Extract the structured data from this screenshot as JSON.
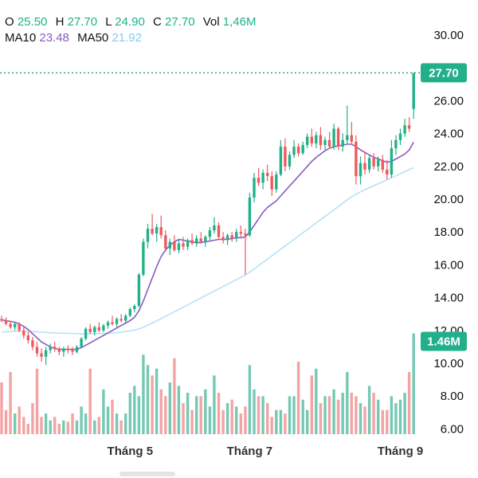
{
  "ohlc_legend": {
    "open_label": "O",
    "open": "25.50",
    "high_label": "H",
    "high": "27.70",
    "low_label": "L",
    "low": "24.90",
    "close_label": "C",
    "close": "27.70",
    "volume_label": "Vol",
    "volume": "1,46M"
  },
  "ma_legend": {
    "ma10_label": "MA10",
    "ma10": "23.48",
    "ma50_label": "MA50",
    "ma50": "21.92"
  },
  "colors": {
    "up": "#21b08a",
    "down": "#f0595c",
    "volume_up": "#75c9b4",
    "volume_down": "#f4a3a4",
    "ma10": "#8a5cc0",
    "ma50": "#b7e2f8",
    "grid_text": "#111111",
    "last_price_line": "#1f9a86"
  },
  "chart_data": {
    "type": "candlestick",
    "price_axis": {
      "ticks": [
        "30.00",
        "26.00",
        "24.00",
        "22.00",
        "20.00",
        "18.00",
        "16.00",
        "14.00",
        "12.00",
        "10.00",
        "8.00",
        "6.00"
      ],
      "range": [
        6,
        30
      ]
    },
    "time_axis": {
      "ticks": [
        "Tháng 5",
        "Tháng 7",
        "Tháng 9"
      ]
    },
    "last_price_label": "27.70",
    "last_volume_label": "1.46M",
    "volume_scale_max": 1.5,
    "candles": [
      [
        12.7,
        12.9,
        12.5,
        12.6
      ],
      [
        12.6,
        12.8,
        12.3,
        12.4
      ],
      [
        12.4,
        12.6,
        12.1,
        12.2
      ],
      [
        12.2,
        12.5,
        12.0,
        12.4
      ],
      [
        12.4,
        12.5,
        11.9,
        12.0
      ],
      [
        12.0,
        12.2,
        11.5,
        11.7
      ],
      [
        11.7,
        11.9,
        11.2,
        11.4
      ],
      [
        11.4,
        11.6,
        10.8,
        11.0
      ],
      [
        11.0,
        11.3,
        10.4,
        10.6
      ],
      [
        10.6,
        10.9,
        10.1,
        10.4
      ],
      [
        10.4,
        11.0,
        9.9,
        10.8
      ],
      [
        10.8,
        11.2,
        10.6,
        11.0
      ],
      [
        11.0,
        11.3,
        10.7,
        10.9
      ],
      [
        10.9,
        11.0,
        10.5,
        10.7
      ],
      [
        10.7,
        11.0,
        10.4,
        10.9
      ],
      [
        10.9,
        11.1,
        10.6,
        10.8
      ],
      [
        10.8,
        11.0,
        10.5,
        10.7
      ],
      [
        10.7,
        11.1,
        10.6,
        11.0
      ],
      [
        11.0,
        11.6,
        10.9,
        11.5
      ],
      [
        11.5,
        12.2,
        11.4,
        12.1
      ],
      [
        12.1,
        12.4,
        11.8,
        11.9
      ],
      [
        11.9,
        12.3,
        11.7,
        12.2
      ],
      [
        12.2,
        12.5,
        11.9,
        12.0
      ],
      [
        12.0,
        12.4,
        11.9,
        12.3
      ],
      [
        12.3,
        12.6,
        12.1,
        12.5
      ],
      [
        12.5,
        12.9,
        12.3,
        12.4
      ],
      [
        12.4,
        12.8,
        12.2,
        12.7
      ],
      [
        12.7,
        13.0,
        12.5,
        12.6
      ],
      [
        12.6,
        13.0,
        12.4,
        12.9
      ],
      [
        12.9,
        13.4,
        12.8,
        13.3
      ],
      [
        13.3,
        13.6,
        13.1,
        13.5
      ],
      [
        13.5,
        15.5,
        13.4,
        15.4
      ],
      [
        15.4,
        17.6,
        15.3,
        17.4
      ],
      [
        17.4,
        18.5,
        17.0,
        18.2
      ],
      [
        18.2,
        19.1,
        17.8,
        17.9
      ],
      [
        17.9,
        18.5,
        17.4,
        18.3
      ],
      [
        18.3,
        19.0,
        17.6,
        17.8
      ],
      [
        17.8,
        18.1,
        16.8,
        17.0
      ],
      [
        17.0,
        17.6,
        16.6,
        17.4
      ],
      [
        17.4,
        17.8,
        16.8,
        16.9
      ],
      [
        16.9,
        17.5,
        16.7,
        17.3
      ],
      [
        17.3,
        17.7,
        16.9,
        17.1
      ],
      [
        17.1,
        17.6,
        16.9,
        17.5
      ],
      [
        17.5,
        17.9,
        17.2,
        17.3
      ],
      [
        17.3,
        17.8,
        17.1,
        17.6
      ],
      [
        17.6,
        18.0,
        17.3,
        17.4
      ],
      [
        17.4,
        17.8,
        17.1,
        17.7
      ],
      [
        17.7,
        18.3,
        17.5,
        18.1
      ],
      [
        18.1,
        18.9,
        17.9,
        18.4
      ],
      [
        18.4,
        18.6,
        17.6,
        17.7
      ],
      [
        17.7,
        18.0,
        17.3,
        17.5
      ],
      [
        17.5,
        17.9,
        17.2,
        17.8
      ],
      [
        17.8,
        18.0,
        17.4,
        17.6
      ],
      [
        17.6,
        18.2,
        17.4,
        18.0
      ],
      [
        18.0,
        18.4,
        17.7,
        17.9
      ],
      [
        17.9,
        18.2,
        15.4,
        17.8
      ],
      [
        17.8,
        20.4,
        17.7,
        20.1
      ],
      [
        20.1,
        21.6,
        19.8,
        21.3
      ],
      [
        21.3,
        21.9,
        20.8,
        21.0
      ],
      [
        21.0,
        21.8,
        20.6,
        21.6
      ],
      [
        21.6,
        22.1,
        21.1,
        21.4
      ],
      [
        21.4,
        21.7,
        20.2,
        20.6
      ],
      [
        20.6,
        21.7,
        20.4,
        21.5
      ],
      [
        21.5,
        23.6,
        21.4,
        23.2
      ],
      [
        23.2,
        23.7,
        21.7,
        22.0
      ],
      [
        22.0,
        22.9,
        21.8,
        22.7
      ],
      [
        22.7,
        23.6,
        22.5,
        23.2
      ],
      [
        23.2,
        23.4,
        22.6,
        22.8
      ],
      [
        22.8,
        23.5,
        22.7,
        23.3
      ],
      [
        23.3,
        24.0,
        23.1,
        23.8
      ],
      [
        23.8,
        24.3,
        23.2,
        23.4
      ],
      [
        23.4,
        24.1,
        23.1,
        23.9
      ],
      [
        23.9,
        24.4,
        23.0,
        23.3
      ],
      [
        23.3,
        23.8,
        23.0,
        23.6
      ],
      [
        23.6,
        24.1,
        23.1,
        23.2
      ],
      [
        23.2,
        24.6,
        23.0,
        24.3
      ],
      [
        24.3,
        24.4,
        23.0,
        23.2
      ],
      [
        23.2,
        24.0,
        22.9,
        23.6
      ],
      [
        23.6,
        25.7,
        23.4,
        23.9
      ],
      [
        23.9,
        24.7,
        23.4,
        23.5
      ],
      [
        23.5,
        23.9,
        20.9,
        21.4
      ],
      [
        21.4,
        22.6,
        20.9,
        22.2
      ],
      [
        22.2,
        22.9,
        21.5,
        21.8
      ],
      [
        21.8,
        22.7,
        21.6,
        22.5
      ],
      [
        22.5,
        22.8,
        21.8,
        22.0
      ],
      [
        22.0,
        22.6,
        21.7,
        22.4
      ],
      [
        22.4,
        22.7,
        21.6,
        21.8
      ],
      [
        21.8,
        22.4,
        21.2,
        21.5
      ],
      [
        21.5,
        23.6,
        21.3,
        23.1
      ],
      [
        23.1,
        23.9,
        22.7,
        23.6
      ],
      [
        23.6,
        24.3,
        23.3,
        24.0
      ],
      [
        24.0,
        24.9,
        23.8,
        24.5
      ],
      [
        24.5,
        25.0,
        24.1,
        24.3
      ],
      [
        25.5,
        27.7,
        24.9,
        27.7
      ]
    ],
    "volume": [
      0.75,
      0.35,
      0.9,
      0.3,
      0.4,
      0.25,
      0.15,
      0.45,
      0.95,
      0.25,
      0.3,
      0.2,
      0.25,
      0.15,
      0.2,
      0.18,
      0.3,
      0.2,
      0.4,
      0.3,
      0.95,
      0.2,
      0.25,
      0.65,
      0.4,
      0.5,
      0.3,
      0.2,
      0.3,
      0.6,
      0.7,
      0.55,
      1.15,
      1.0,
      0.85,
      0.95,
      0.65,
      0.55,
      0.75,
      1.1,
      0.7,
      0.45,
      0.6,
      0.35,
      0.55,
      0.55,
      0.65,
      0.4,
      0.85,
      0.6,
      0.35,
      0.45,
      0.5,
      0.4,
      0.3,
      0.4,
      1.0,
      0.65,
      0.55,
      0.55,
      0.45,
      0.25,
      0.35,
      0.35,
      0.3,
      0.55,
      0.55,
      1.05,
      0.5,
      0.35,
      0.85,
      0.95,
      0.45,
      0.55,
      0.55,
      0.65,
      0.5,
      0.6,
      0.9,
      0.6,
      0.55,
      0.45,
      0.4,
      0.7,
      0.6,
      0.5,
      0.35,
      0.35,
      0.55,
      0.45,
      0.5,
      0.6,
      0.9,
      1.46
    ],
    "ma10": [
      12.65,
      12.6,
      12.55,
      12.5,
      12.4,
      12.25,
      12.05,
      11.8,
      11.55,
      11.3,
      11.15,
      11.0,
      10.9,
      10.85,
      10.85,
      10.85,
      10.85,
      10.85,
      10.95,
      11.1,
      11.25,
      11.4,
      11.55,
      11.7,
      11.85,
      12.0,
      12.15,
      12.3,
      12.45,
      12.6,
      12.8,
      13.2,
      13.8,
      14.5,
      15.2,
      15.9,
      16.5,
      16.9,
      17.2,
      17.4,
      17.55,
      17.5,
      17.45,
      17.4,
      17.35,
      17.35,
      17.4,
      17.45,
      17.5,
      17.55,
      17.55,
      17.55,
      17.6,
      17.65,
      17.65,
      17.7,
      18.0,
      18.4,
      18.8,
      19.2,
      19.5,
      19.7,
      19.9,
      20.2,
      20.5,
      20.8,
      21.1,
      21.4,
      21.7,
      22.0,
      22.3,
      22.55,
      22.75,
      22.95,
      23.1,
      23.2,
      23.25,
      23.3,
      23.35,
      23.35,
      23.2,
      23.0,
      22.85,
      22.7,
      22.55,
      22.45,
      22.35,
      22.25,
      22.3,
      22.45,
      22.6,
      22.75,
      23.0,
      23.48
    ],
    "ma50": [
      11.9,
      11.92,
      11.93,
      11.94,
      11.95,
      11.95,
      11.94,
      11.93,
      11.92,
      11.9,
      11.88,
      11.86,
      11.85,
      11.84,
      11.83,
      11.82,
      11.81,
      11.8,
      11.8,
      11.8,
      11.8,
      11.8,
      11.81,
      11.82,
      11.83,
      11.85,
      11.87,
      11.9,
      11.93,
      11.97,
      12.02,
      12.1,
      12.2,
      12.32,
      12.45,
      12.58,
      12.72,
      12.86,
      13.0,
      13.14,
      13.28,
      13.42,
      13.56,
      13.7,
      13.84,
      13.98,
      14.12,
      14.26,
      14.4,
      14.54,
      14.68,
      14.82,
      14.96,
      15.1,
      15.24,
      15.38,
      15.55,
      15.75,
      15.95,
      16.15,
      16.35,
      16.55,
      16.75,
      16.95,
      17.15,
      17.35,
      17.55,
      17.75,
      17.95,
      18.15,
      18.35,
      18.55,
      18.75,
      18.95,
      19.15,
      19.35,
      19.55,
      19.75,
      19.95,
      20.15,
      20.3,
      20.45,
      20.58,
      20.7,
      20.82,
      20.94,
      21.06,
      21.18,
      21.3,
      21.42,
      21.55,
      21.68,
      21.8,
      21.92
    ],
    "month_tick_positions": [
      29,
      56,
      90
    ]
  }
}
